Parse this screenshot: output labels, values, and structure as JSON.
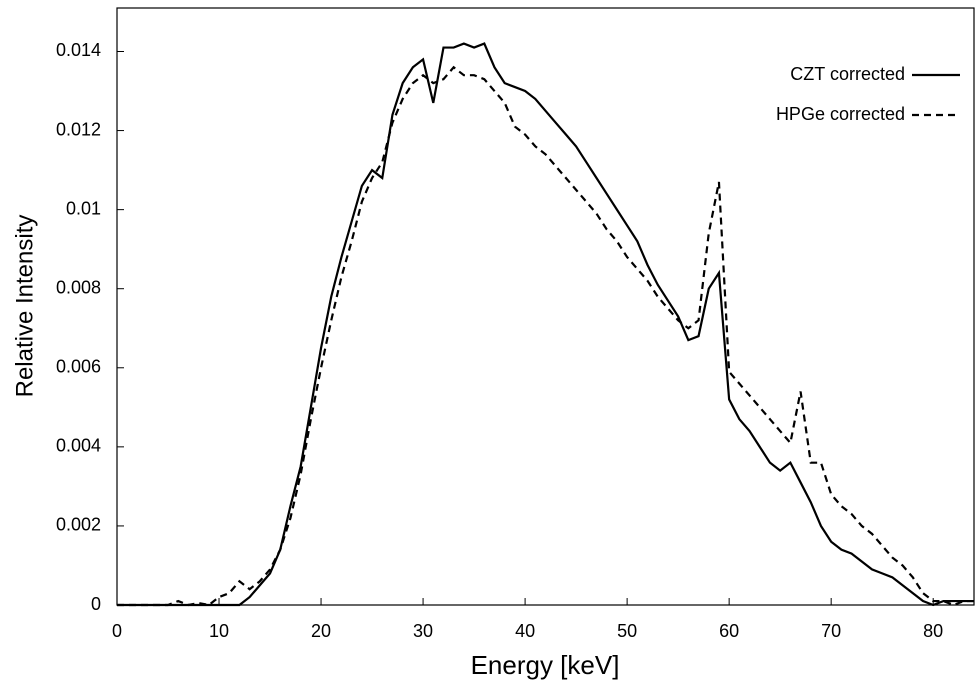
{
  "chart_data": {
    "type": "line",
    "x_label": "Energy [keV]",
    "y_label": "Relative Intensity",
    "x": [
      0,
      1,
      2,
      3,
      4,
      5,
      6,
      7,
      8,
      9,
      10,
      11,
      12,
      13,
      14,
      15,
      16,
      17,
      18,
      19,
      20,
      21,
      22,
      23,
      24,
      25,
      26,
      27,
      28,
      29,
      30,
      31,
      32,
      33,
      34,
      35,
      36,
      37,
      38,
      39,
      40,
      41,
      42,
      43,
      44,
      45,
      46,
      47,
      48,
      49,
      50,
      51,
      52,
      53,
      54,
      55,
      56,
      57,
      58,
      59,
      60,
      61,
      62,
      63,
      64,
      65,
      66,
      67,
      68,
      69,
      70,
      71,
      72,
      73,
      74,
      75,
      76,
      77,
      78,
      79,
      80,
      81,
      82,
      83,
      84
    ],
    "series": [
      {
        "name": "CZT corrected",
        "color": "#000000",
        "style": "solid",
        "values": [
          0,
          0,
          0,
          0,
          0,
          0,
          0,
          0,
          0,
          0,
          0,
          0,
          0,
          0.0002,
          0.0005,
          0.0008,
          0.0014,
          0.0025,
          0.0035,
          0.005,
          0.0065,
          0.0078,
          0.0088,
          0.0097,
          0.0106,
          0.011,
          0.0108,
          0.0124,
          0.0132,
          0.0136,
          0.0138,
          0.0127,
          0.0141,
          0.0141,
          0.0142,
          0.0141,
          0.0142,
          0.0136,
          0.0132,
          0.0131,
          0.013,
          0.0128,
          0.0125,
          0.0122,
          0.0119,
          0.0116,
          0.0112,
          0.0108,
          0.0104,
          0.01,
          0.0096,
          0.0092,
          0.0086,
          0.0081,
          0.0077,
          0.0073,
          0.0067,
          0.0068,
          0.008,
          0.0084,
          0.0052,
          0.0047,
          0.0044,
          0.004,
          0.0036,
          0.0034,
          0.0036,
          0.0031,
          0.0026,
          0.002,
          0.0016,
          0.0014,
          0.0013,
          0.0011,
          0.0009,
          0.0008,
          0.0007,
          0.0005,
          0.0003,
          0.0001,
          0,
          0.0001,
          0.0001,
          0.0001,
          0.0001
        ]
      },
      {
        "name": "HPGe corrected",
        "color": "#000000",
        "style": "dashed",
        "values": [
          0,
          0,
          0,
          0,
          0,
          0,
          0.0001,
          0,
          5e-05,
          0,
          0.0002,
          0.0003,
          0.0006,
          0.0004,
          0.0006,
          0.0009,
          0.0014,
          0.0022,
          0.0033,
          0.0047,
          0.006,
          0.0072,
          0.0083,
          0.0092,
          0.0102,
          0.0108,
          0.0112,
          0.0122,
          0.0128,
          0.0132,
          0.0134,
          0.0132,
          0.0133,
          0.0136,
          0.0134,
          0.0134,
          0.0133,
          0.013,
          0.0127,
          0.0121,
          0.0119,
          0.0116,
          0.0114,
          0.0111,
          0.0108,
          0.0105,
          0.0102,
          0.0099,
          0.0095,
          0.0092,
          0.0088,
          0.0085,
          0.0082,
          0.0078,
          0.0075,
          0.0072,
          0.007,
          0.0072,
          0.0094,
          0.0107,
          0.0059,
          0.0056,
          0.0053,
          0.005,
          0.0047,
          0.0044,
          0.0041,
          0.0054,
          0.0036,
          0.0036,
          0.0028,
          0.0025,
          0.0023,
          0.002,
          0.0018,
          0.0015,
          0.0012,
          0.001,
          0.0007,
          0.0003,
          0.0001,
          0.0001,
          0,
          0.0001,
          0.0001
        ]
      }
    ],
    "xlim": [
      0,
      84
    ],
    "ylim": [
      0,
      0.0151
    ],
    "xticks": [
      0,
      10,
      20,
      30,
      40,
      50,
      60,
      70,
      80
    ],
    "yticks": [
      0,
      0.002,
      0.004,
      0.006,
      0.008,
      0.01,
      0.012,
      0.014
    ],
    "grid": false,
    "legend": "upper right"
  }
}
